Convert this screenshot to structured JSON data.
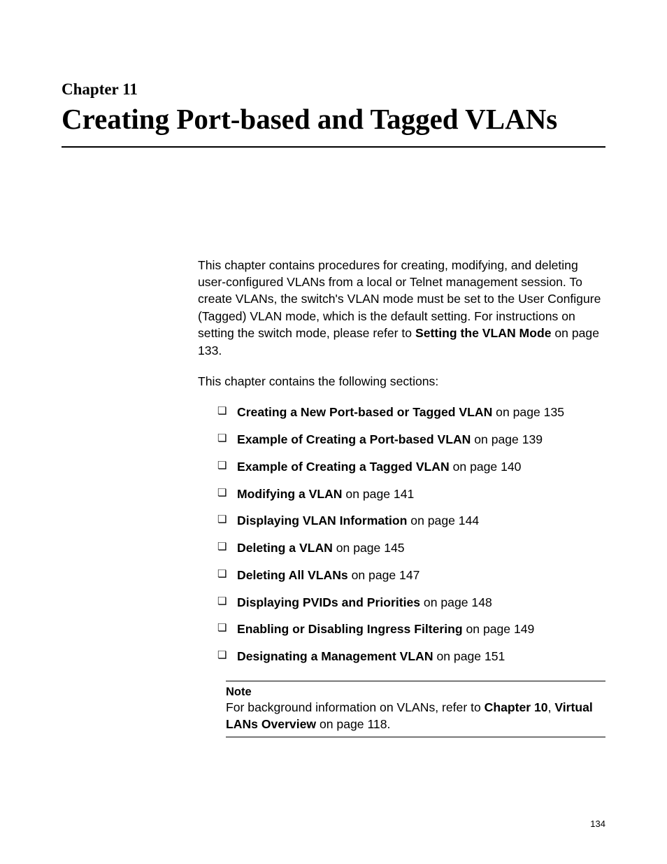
{
  "chapter": {
    "label": "Chapter 11",
    "title": "Creating Port-based and Tagged VLANs"
  },
  "intro": {
    "pre": "This chapter contains procedures for creating, modifying, and deleting user-configured VLANs from a local or Telnet management session. To create VLANs, the switch's VLAN mode must be set to the User Configure (Tagged) VLAN mode, which is the default setting. For instructions on setting the switch mode, please refer to ",
    "bold": "Setting the VLAN Mode",
    "post": " on page 133."
  },
  "sections_heading": "This chapter contains the following sections:",
  "sections": [
    {
      "title": "Creating a New Port-based or Tagged VLAN",
      "page": "135"
    },
    {
      "title": "Example of Creating a Port-based VLAN",
      "page": "139"
    },
    {
      "title": "Example of Creating a Tagged VLAN",
      "page": "140"
    },
    {
      "title": "Modifying a VLAN",
      "page": "141"
    },
    {
      "title": "Displaying VLAN Information",
      "page": "144"
    },
    {
      "title": "Deleting a VLAN",
      "page": "145"
    },
    {
      "title": "Deleting All VLANs",
      "page": "147"
    },
    {
      "title": "Displaying PVIDs and Priorities",
      "page": "148"
    },
    {
      "title": "Enabling or Disabling Ingress Filtering",
      "page": "149"
    },
    {
      "title": "Designating a Management VLAN",
      "page": "151"
    }
  ],
  "note": {
    "label": "Note",
    "pre": "For background information on VLANs, refer to ",
    "bold1": "Chapter 10",
    "mid": ", ",
    "bold2": "Virtual LANs Overview",
    "post": " on page 118."
  },
  "page_number": "134",
  "on_page_prefix": " on page "
}
